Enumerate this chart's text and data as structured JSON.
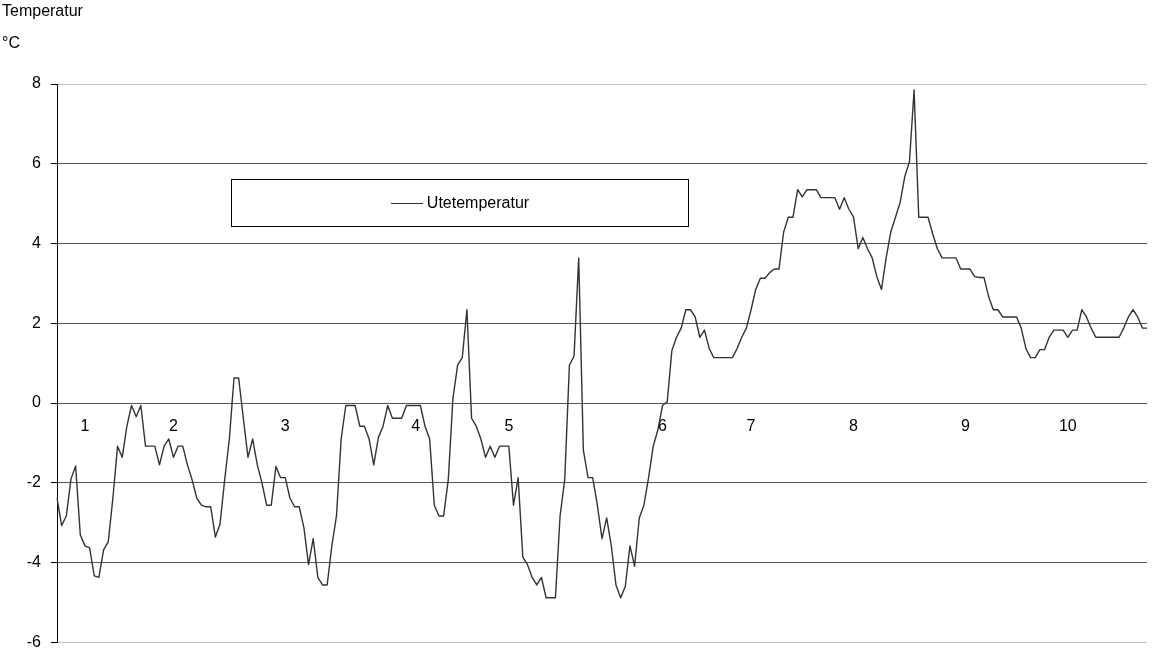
{
  "chart_data": {
    "type": "line",
    "title": "Temperatur",
    "ylabel": "°C",
    "categories": [
      null,
      null,
      null,
      null,
      null,
      null,
      "1",
      null,
      null,
      null,
      null,
      null,
      null,
      null,
      null,
      null,
      null,
      null,
      null,
      null,
      null,
      null,
      null,
      null,
      null,
      "2",
      null,
      null,
      null,
      null,
      null,
      null,
      null,
      null,
      null,
      null,
      null,
      null,
      null,
      null,
      null,
      null,
      null,
      null,
      null,
      null,
      null,
      null,
      null,
      "3",
      null,
      null,
      null,
      null,
      null,
      null,
      null,
      null,
      null,
      null,
      null,
      null,
      null,
      null,
      null,
      null,
      null,
      null,
      null,
      null,
      null,
      null,
      null,
      null,
      null,
      null,
      null,
      "4",
      null,
      null,
      null,
      null,
      null,
      null,
      null,
      null,
      null,
      null,
      null,
      null,
      null,
      null,
      null,
      null,
      null,
      null,
      null,
      "5",
      null,
      null,
      null,
      null,
      null,
      null,
      null,
      null,
      null,
      null,
      null,
      null,
      null,
      null,
      null,
      null,
      null,
      null,
      null,
      null,
      null,
      null,
      null,
      null,
      null,
      null,
      null,
      null,
      null,
      null,
      null,
      null,
      "6",
      null,
      null,
      null,
      null,
      null,
      null,
      null,
      null,
      null,
      null,
      null,
      null,
      null,
      null,
      null,
      null,
      null,
      null,
      "7",
      null,
      null,
      null,
      null,
      null,
      null,
      null,
      null,
      null,
      null,
      null,
      null,
      null,
      null,
      null,
      null,
      null,
      null,
      null,
      null,
      null,
      "8",
      null,
      null,
      null,
      null,
      null,
      null,
      null,
      null,
      null,
      null,
      null,
      null,
      null,
      null,
      null,
      null,
      null,
      null,
      null,
      null,
      null,
      null,
      null,
      "9",
      null,
      null,
      null,
      null,
      null,
      null,
      null,
      null,
      null,
      null,
      null,
      null,
      null,
      null,
      null,
      null,
      null,
      null,
      null,
      null,
      null,
      "10",
      null,
      null,
      null,
      null,
      null,
      null,
      null,
      null,
      null,
      null,
      null,
      null,
      null,
      null,
      null,
      null,
      null
    ],
    "ylim": [
      -6,
      8
    ],
    "yticks": [
      -6,
      -4,
      -2,
      0,
      2,
      4,
      6,
      8
    ],
    "grid": "y",
    "legend": "top left",
    "marker": "none",
    "line_style": "solid",
    "series": [
      {
        "name": "Utetemperatur",
        "color": "#333333",
        "values": [
          -2.38,
          -3.07,
          -2.83,
          -1.9,
          -1.58,
          -3.3,
          -3.58,
          -3.63,
          -4.33,
          -4.37,
          -3.68,
          -3.48,
          -2.38,
          -1.08,
          -1.36,
          -0.58,
          -0.06,
          -0.34,
          -0.06,
          -1.08,
          -1.08,
          -1.08,
          -1.55,
          -1.08,
          -0.9,
          -1.36,
          -1.08,
          -1.08,
          -1.55,
          -1.92,
          -2.38,
          -2.56,
          -2.6,
          -2.6,
          -3.36,
          -3.03,
          -1.92,
          -0.9,
          0.63,
          0.63,
          -0.38,
          -1.36,
          -0.9,
          -1.55,
          -2.0,
          -2.56,
          -2.56,
          -1.59,
          -1.87,
          -1.87,
          -2.38,
          -2.6,
          -2.6,
          -3.12,
          -4.05,
          -3.4,
          -4.37,
          -4.56,
          -4.56,
          -3.58,
          -2.83,
          -0.9,
          -0.06,
          -0.06,
          -0.06,
          -0.58,
          -0.58,
          -0.9,
          -1.55,
          -0.86,
          -0.58,
          -0.06,
          -0.38,
          -0.38,
          -0.38,
          -0.06,
          -0.06,
          -0.06,
          -0.06,
          -0.58,
          -0.9,
          -2.56,
          -2.83,
          -2.83,
          -1.92,
          0.12,
          0.95,
          1.14,
          2.34,
          -0.38,
          -0.58,
          -0.9,
          -1.36,
          -1.08,
          -1.36,
          -1.08,
          -1.08,
          -1.08,
          -2.56,
          -1.87,
          -3.86,
          -4.05,
          -4.37,
          -4.56,
          -4.37,
          -4.88,
          -4.88,
          -4.88,
          -2.83,
          -1.92,
          0.95,
          1.18,
          3.64,
          -1.18,
          -1.87,
          -1.87,
          -2.56,
          -3.4,
          -2.88,
          -3.58,
          -4.56,
          -4.88,
          -4.6,
          -3.58,
          -4.09,
          -2.88,
          -2.56,
          -1.87,
          -1.08,
          -0.67,
          -0.06,
          0.03,
          1.32,
          1.65,
          1.88,
          2.34,
          2.34,
          2.16,
          1.65,
          1.83,
          1.37,
          1.14,
          1.14,
          1.14,
          1.14,
          1.14,
          1.37,
          1.65,
          1.88,
          2.34,
          2.85,
          3.13,
          3.13,
          3.27,
          3.36,
          3.36,
          4.29,
          4.66,
          4.66,
          5.35,
          5.17,
          5.35,
          5.35,
          5.35,
          5.15,
          5.15,
          5.15,
          5.15,
          4.86,
          5.15,
          4.86,
          4.66,
          3.87,
          4.15,
          3.87,
          3.64,
          3.17,
          2.85,
          3.64,
          4.29,
          4.66,
          5.03,
          5.68,
          6.05,
          7.85,
          4.66,
          4.66,
          4.66,
          4.24,
          3.87,
          3.64,
          3.64,
          3.64,
          3.64,
          3.36,
          3.36,
          3.36,
          3.17,
          3.15,
          3.15,
          2.67,
          2.34,
          2.34,
          2.16,
          2.16,
          2.16,
          2.16,
          1.88,
          1.37,
          1.14,
          1.14,
          1.34,
          1.34,
          1.65,
          1.83,
          1.83,
          1.83,
          1.65,
          1.83,
          1.83,
          2.34,
          2.16,
          1.88,
          1.65,
          1.65,
          1.65,
          1.65,
          1.65,
          1.65,
          1.88,
          2.16,
          2.34,
          2.16,
          1.88,
          1.88
        ]
      }
    ]
  }
}
